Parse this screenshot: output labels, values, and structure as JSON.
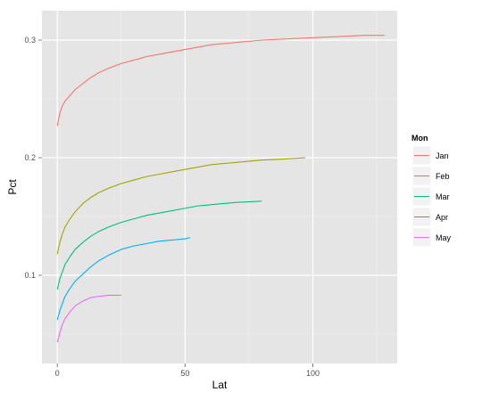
{
  "chart_data": {
    "type": "line",
    "xlabel": "Lat",
    "ylabel": "Pct",
    "xlim": [
      -6,
      133
    ],
    "ylim": [
      0.025,
      0.325
    ],
    "x_ticks": [
      0,
      50,
      100
    ],
    "y_ticks": [
      0.1,
      0.2,
      0.3
    ],
    "x_tick_labels": [
      "0",
      "50",
      "100"
    ],
    "y_tick_labels": [
      "0.1",
      "0.2",
      "0.3"
    ],
    "grid": true,
    "background": "#e5e5e5",
    "legend": {
      "title": "Mon",
      "position": "right"
    },
    "series": [
      {
        "name": "Jan",
        "color": "#f8766d",
        "points": [
          [
            0,
            0.227
          ],
          [
            1,
            0.238
          ],
          [
            2,
            0.244
          ],
          [
            3,
            0.248
          ],
          [
            5,
            0.253
          ],
          [
            7,
            0.258
          ],
          [
            10,
            0.263
          ],
          [
            13,
            0.268
          ],
          [
            16,
            0.272
          ],
          [
            20,
            0.276
          ],
          [
            25,
            0.28
          ],
          [
            30,
            0.283
          ],
          [
            35,
            0.286
          ],
          [
            40,
            0.288
          ],
          [
            45,
            0.29
          ],
          [
            50,
            0.292
          ],
          [
            55,
            0.294
          ],
          [
            60,
            0.296
          ],
          [
            65,
            0.297
          ],
          [
            70,
            0.298
          ],
          [
            80,
            0.3
          ],
          [
            90,
            0.301
          ],
          [
            100,
            0.302
          ],
          [
            110,
            0.303
          ],
          [
            120,
            0.304
          ],
          [
            128,
            0.304
          ]
        ]
      },
      {
        "name": "Feb",
        "color": "#a3a500",
        "points": [
          [
            0,
            0.118
          ],
          [
            1,
            0.128
          ],
          [
            2,
            0.135
          ],
          [
            3,
            0.141
          ],
          [
            5,
            0.148
          ],
          [
            7,
            0.154
          ],
          [
            10,
            0.161
          ],
          [
            13,
            0.166
          ],
          [
            16,
            0.17
          ],
          [
            20,
            0.174
          ],
          [
            25,
            0.178
          ],
          [
            30,
            0.181
          ],
          [
            35,
            0.184
          ],
          [
            40,
            0.186
          ],
          [
            45,
            0.188
          ],
          [
            50,
            0.19
          ],
          [
            55,
            0.192
          ],
          [
            60,
            0.194
          ],
          [
            65,
            0.195
          ],
          [
            70,
            0.196
          ],
          [
            80,
            0.198
          ],
          [
            90,
            0.199
          ],
          [
            97,
            0.2
          ]
        ]
      },
      {
        "name": "Mar",
        "color": "#00bf7d",
        "points": [
          [
            0,
            0.088
          ],
          [
            1,
            0.097
          ],
          [
            2,
            0.103
          ],
          [
            3,
            0.109
          ],
          [
            5,
            0.116
          ],
          [
            7,
            0.122
          ],
          [
            10,
            0.128
          ],
          [
            13,
            0.133
          ],
          [
            16,
            0.137
          ],
          [
            20,
            0.141
          ],
          [
            25,
            0.145
          ],
          [
            30,
            0.148
          ],
          [
            35,
            0.151
          ],
          [
            40,
            0.153
          ],
          [
            45,
            0.155
          ],
          [
            50,
            0.157
          ],
          [
            55,
            0.159
          ],
          [
            60,
            0.16
          ],
          [
            65,
            0.161
          ],
          [
            70,
            0.162
          ],
          [
            80,
            0.163
          ]
        ]
      },
      {
        "name": "Apr",
        "color": "#00b0f6",
        "points": [
          [
            0,
            0.062
          ],
          [
            1,
            0.07
          ],
          [
            2,
            0.076
          ],
          [
            3,
            0.082
          ],
          [
            5,
            0.089
          ],
          [
            7,
            0.095
          ],
          [
            10,
            0.101
          ],
          [
            13,
            0.107
          ],
          [
            16,
            0.112
          ],
          [
            20,
            0.117
          ],
          [
            25,
            0.122
          ],
          [
            30,
            0.125
          ],
          [
            35,
            0.127
          ],
          [
            40,
            0.129
          ],
          [
            45,
            0.13
          ],
          [
            50,
            0.131
          ],
          [
            52,
            0.132
          ]
        ]
      },
      {
        "name": "May",
        "color": "#e76bf3",
        "points": [
          [
            0,
            0.043
          ],
          [
            1,
            0.051
          ],
          [
            2,
            0.058
          ],
          [
            3,
            0.063
          ],
          [
            5,
            0.069
          ],
          [
            7,
            0.074
          ],
          [
            10,
            0.078
          ],
          [
            13,
            0.081
          ],
          [
            16,
            0.082
          ],
          [
            20,
            0.083
          ],
          [
            25,
            0.083
          ]
        ]
      }
    ]
  }
}
